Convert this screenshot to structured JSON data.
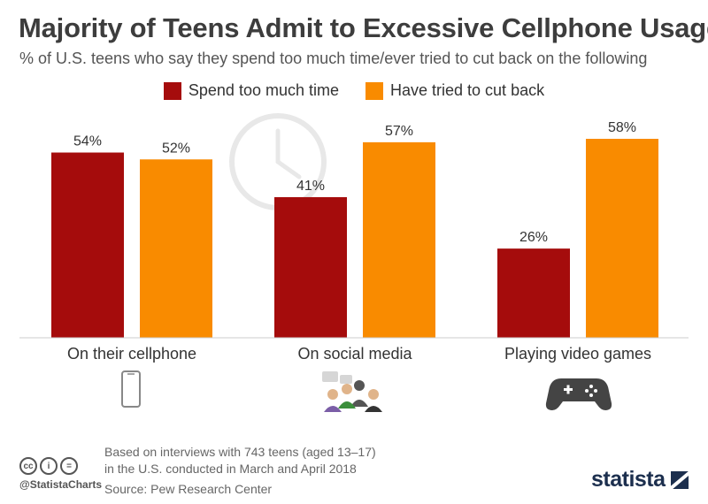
{
  "header": {
    "title": "Majority of Teens Admit to Excessive Cellphone Usage",
    "subtitle": "% of U.S. teens who say they spend too much time/ever tried to cut back on the following"
  },
  "legend": {
    "items": [
      {
        "label": "Spend too much time",
        "color": "#a50c0c"
      },
      {
        "label": "Have tried to cut back",
        "color": "#f98b00"
      }
    ]
  },
  "chart_data": {
    "type": "bar",
    "title": "Majority of Teens Admit to Excessive Cellphone Usage",
    "subtitle": "% of U.S. teens who say they spend too much time/ever tried to cut back on the following",
    "categories": [
      "On their cellphone",
      "On social media",
      "Playing video games"
    ],
    "series": [
      {
        "name": "Spend too much time",
        "values": [
          54,
          41,
          26
        ],
        "color": "#a50c0c"
      },
      {
        "name": "Have tried to cut back",
        "values": [
          52,
          57,
          58
        ],
        "color": "#f98b00"
      }
    ],
    "data_labels": [
      [
        "54%",
        "41%",
        "26%"
      ],
      [
        "52%",
        "57%",
        "58%"
      ]
    ],
    "ylim": [
      0,
      60
    ],
    "grid": false,
    "legend_position": "top-center",
    "category_icons": [
      "smartphone-icon",
      "social-group-icon",
      "gamepad-icon"
    ],
    "background_icon": "clock-icon"
  },
  "footer": {
    "note_line1": "Based on interviews with 743 teens (aged 13–17)",
    "note_line2": "in the U.S. conducted in March and April 2018",
    "source": "Source: Pew Research Center",
    "handle": "@StatistaCharts",
    "logo": "statista",
    "cc_icons": [
      "cc",
      "i",
      "="
    ]
  }
}
